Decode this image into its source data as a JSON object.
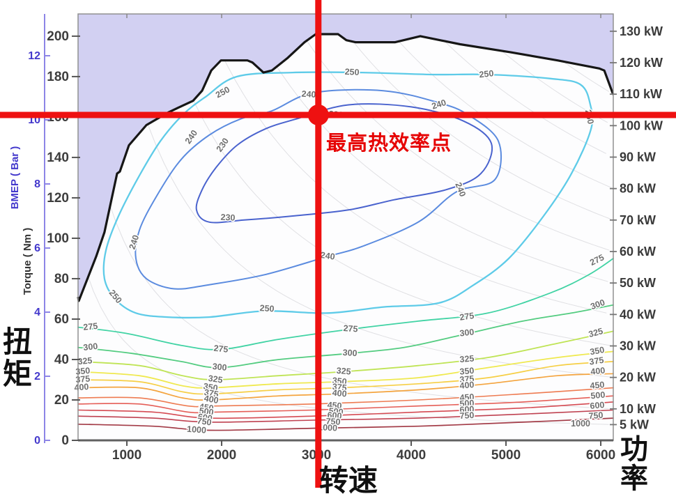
{
  "annotations": {
    "max_eff": "最高热效率点",
    "torque_cn": "扭矩",
    "speed_cn": "转速",
    "power_cn": "功率"
  },
  "chart_data": {
    "type": "contour",
    "title": "",
    "z_meaning": "BSFC contour levels (g/kWh)",
    "x": {
      "unit": "rpm",
      "ticks": [
        1000,
        2000,
        3000,
        4000,
        5000,
        6000
      ],
      "range": [
        485,
        6132
      ]
    },
    "y": {
      "label": "Torque ( Nm )",
      "unit": "Nm",
      "ticks": [
        0,
        20,
        40,
        60,
        80,
        100,
        120,
        140,
        160,
        180,
        200
      ],
      "range": [
        0,
        211
      ]
    },
    "y2": {
      "label": "BMEP ( Bar )",
      "unit": "Bar",
      "ticks": [
        0,
        2,
        4,
        6,
        8,
        10,
        12
      ],
      "range": [
        0,
        13.3
      ]
    },
    "power": {
      "unit": "kW",
      "levels": [
        130,
        120,
        110,
        100,
        90,
        80,
        70,
        60,
        50,
        40,
        30,
        20,
        10,
        5
      ]
    },
    "full_load_curve": [
      [
        485,
        71
      ],
      [
        492,
        69
      ],
      [
        676,
        91
      ],
      [
        764,
        103
      ],
      [
        823,
        116
      ],
      [
        897,
        132
      ],
      [
        926,
        133
      ],
      [
        1022,
        146
      ],
      [
        1206,
        156
      ],
      [
        1426,
        162
      ],
      [
        1515,
        164
      ],
      [
        1698,
        168
      ],
      [
        1794,
        173
      ],
      [
        1890,
        183
      ],
      [
        1993,
        188
      ],
      [
        2272,
        188
      ],
      [
        2324,
        187
      ],
      [
        2441,
        182
      ],
      [
        2529,
        183
      ],
      [
        2691,
        189
      ],
      [
        2875,
        197
      ],
      [
        2993,
        201
      ],
      [
        3228,
        201
      ],
      [
        3316,
        198
      ],
      [
        3412,
        197
      ],
      [
        3831,
        197
      ],
      [
        4096,
        200
      ],
      [
        4515,
        196
      ],
      [
        5052,
        192
      ],
      [
        5544,
        188
      ],
      [
        5985,
        184
      ],
      [
        6037,
        183
      ],
      [
        6132,
        171
      ]
    ],
    "contours": [
      {
        "level": 230,
        "color": "#4a63ce",
        "width": 2,
        "closed": true,
        "points": [
          [
            2786,
            159
          ],
          [
            3338,
            166
          ],
          [
            4000,
            165
          ],
          [
            4551,
            158
          ],
          [
            4845,
            147
          ],
          [
            4735,
            132
          ],
          [
            4367,
            124
          ],
          [
            3816,
            119
          ],
          [
            3338,
            114
          ],
          [
            2750,
            111
          ],
          [
            2235,
            109
          ],
          [
            1867,
            108
          ],
          [
            1735,
            114
          ],
          [
            1794,
            124
          ],
          [
            1941,
            135
          ],
          [
            2162,
            146
          ],
          [
            2456,
            154
          ]
        ],
        "labels": [
          [
            2014,
            146,
            -55
          ],
          [
            2066,
            110,
            3
          ],
          [
            3206,
            161,
            5
          ]
        ]
      },
      {
        "level": 240,
        "color": "#5b8bdf",
        "width": 2,
        "closed": true,
        "points": [
          [
            2529,
            163
          ],
          [
            2970,
            172
          ],
          [
            3706,
            173
          ],
          [
            4294,
            167
          ],
          [
            4603,
            161
          ],
          [
            4920,
            148
          ],
          [
            4883,
            129
          ],
          [
            4478,
            123
          ],
          [
            4074,
            108
          ],
          [
            3485,
            96
          ],
          [
            3118,
            91
          ],
          [
            2456,
            82
          ],
          [
            1867,
            77
          ],
          [
            1500,
            75
          ],
          [
            1206,
            80
          ],
          [
            1095,
            90
          ],
          [
            1132,
            104
          ],
          [
            1316,
            121
          ],
          [
            1573,
            139
          ],
          [
            1867,
            151
          ],
          [
            2198,
            159
          ]
        ],
        "labels": [
          [
            1684,
            150,
            -55
          ],
          [
            2919,
            171,
            4
          ],
          [
            4294,
            166,
            -18
          ],
          [
            4515,
            124,
            68
          ],
          [
            3118,
            91,
            8
          ],
          [
            1081,
            98,
            -72
          ]
        ]
      },
      {
        "level": 250,
        "color": "#5ecbe8",
        "width": 2.3,
        "closed": true,
        "points": [
          [
            2162,
            180
          ],
          [
            2750,
            182
          ],
          [
            3485,
            182
          ],
          [
            4221,
            181
          ],
          [
            4809,
            181
          ],
          [
            5471,
            179
          ],
          [
            5787,
            176
          ],
          [
            5890,
            166
          ],
          [
            5897,
            154
          ],
          [
            5691,
            132
          ],
          [
            5397,
            111
          ],
          [
            5029,
            90
          ],
          [
            4662,
            77
          ],
          [
            4294,
            68
          ],
          [
            3706,
            66
          ],
          [
            3118,
            63
          ],
          [
            2456,
            64
          ],
          [
            1867,
            61
          ],
          [
            1426,
            61
          ],
          [
            1095,
            63
          ],
          [
            875,
            70
          ],
          [
            764,
            80
          ],
          [
            779,
            94
          ],
          [
            912,
            111
          ],
          [
            1132,
            131
          ],
          [
            1353,
            148
          ],
          [
            1588,
            161
          ],
          [
            1831,
            170
          ]
        ],
        "labels": [
          [
            875,
            71,
            50
          ],
          [
            2014,
            172,
            -28
          ],
          [
            3375,
            182,
            3
          ],
          [
            4794,
            181,
            -6
          ],
          [
            5875,
            160,
            78
          ],
          [
            2478,
            65,
            4
          ]
        ]
      },
      {
        "level": 275,
        "color": "#41d3a4",
        "width": 1.8,
        "closed": false,
        "points": [
          [
            485,
            56
          ],
          [
            985,
            53
          ],
          [
            1573,
            47
          ],
          [
            1992,
            45
          ],
          [
            2603,
            50
          ],
          [
            3360,
            55
          ],
          [
            4074,
            59
          ],
          [
            4809,
            63
          ],
          [
            5471,
            73
          ],
          [
            5875,
            82
          ],
          [
            6132,
            90
          ]
        ],
        "labels": [
          [
            617,
            56,
            -6
          ],
          [
            1992,
            45,
            6
          ],
          [
            3360,
            55,
            4
          ],
          [
            4588,
            61,
            -8
          ],
          [
            5963,
            89,
            -26
          ]
        ]
      },
      {
        "level": 300,
        "color": "#53cc80",
        "width": 1.8,
        "closed": false,
        "points": [
          [
            485,
            46
          ],
          [
            1059,
            43
          ],
          [
            1573,
            39
          ],
          [
            1978,
            36
          ],
          [
            2603,
            40
          ],
          [
            3338,
            43
          ],
          [
            3927,
            46
          ],
          [
            4515,
            52
          ],
          [
            5176,
            59
          ],
          [
            5691,
            63
          ],
          [
            6132,
            67
          ]
        ],
        "labels": [
          [
            617,
            46,
            -6
          ],
          [
            1978,
            36,
            6
          ],
          [
            3353,
            43,
            4
          ],
          [
            4588,
            53,
            -6
          ],
          [
            5970,
            67,
            -20
          ]
        ]
      },
      {
        "level": 325,
        "color": "#bfe455",
        "width": 1.8,
        "closed": false,
        "points": [
          [
            485,
            39
          ],
          [
            1132,
            37
          ],
          [
            1588,
            32
          ],
          [
            1934,
            30
          ],
          [
            2603,
            32
          ],
          [
            3287,
            34
          ],
          [
            4074,
            37
          ],
          [
            4809,
            41
          ],
          [
            5544,
            48
          ],
          [
            6132,
            54
          ]
        ],
        "labels": [
          [
            559,
            39,
            -5
          ],
          [
            1934,
            30,
            8
          ],
          [
            3287,
            34,
            5
          ],
          [
            4588,
            40,
            -5
          ],
          [
            5949,
            53,
            -15
          ]
        ]
      },
      {
        "level": 350,
        "color": "#efe94f",
        "width": 1.8,
        "closed": false,
        "points": [
          [
            485,
            34
          ],
          [
            1132,
            32
          ],
          [
            1588,
            27
          ],
          [
            1882,
            26
          ],
          [
            2603,
            28
          ],
          [
            3243,
            29
          ],
          [
            4074,
            31
          ],
          [
            4809,
            36
          ],
          [
            5544,
            41
          ],
          [
            6132,
            44
          ]
        ],
        "labels": [
          [
            536,
            34,
            -5
          ],
          [
            1882,
            26,
            10
          ],
          [
            3243,
            29,
            6
          ],
          [
            4588,
            34,
            -5
          ],
          [
            5963,
            44,
            -10
          ]
        ]
      },
      {
        "level": 375,
        "color": "#f6cf45",
        "width": 1.7,
        "closed": false,
        "points": [
          [
            485,
            30
          ],
          [
            1132,
            29
          ],
          [
            1588,
            24
          ],
          [
            1890,
            23
          ],
          [
            2603,
            25
          ],
          [
            3243,
            26
          ],
          [
            4074,
            28
          ],
          [
            4809,
            31
          ],
          [
            5544,
            37
          ],
          [
            6132,
            39
          ]
        ],
        "labels": [
          [
            536,
            30,
            -5
          ],
          [
            1890,
            23,
            10
          ],
          [
            3243,
            26,
            6
          ],
          [
            4588,
            30,
            -5
          ],
          [
            5956,
            39,
            -8
          ]
        ]
      },
      {
        "level": 400,
        "color": "#f4a43e",
        "width": 1.7,
        "closed": false,
        "points": [
          [
            485,
            26
          ],
          [
            1132,
            26
          ],
          [
            1588,
            21
          ],
          [
            1890,
            20
          ],
          [
            2603,
            22
          ],
          [
            3243,
            23
          ],
          [
            4074,
            25
          ],
          [
            4809,
            28
          ],
          [
            5544,
            32
          ],
          [
            6132,
            33
          ]
        ],
        "labels": [
          [
            522,
            26,
            -5
          ],
          [
            1890,
            20,
            10
          ],
          [
            3243,
            23,
            6
          ],
          [
            4588,
            27,
            -5
          ],
          [
            5970,
            34,
            -6
          ]
        ]
      },
      {
        "level": 450,
        "color": "#ee7b51",
        "width": 1.6,
        "closed": false,
        "points": [
          [
            485,
            21
          ],
          [
            1132,
            21
          ],
          [
            1647,
            17
          ],
          [
            1941,
            17
          ],
          [
            2970,
            18
          ],
          [
            4074,
            20
          ],
          [
            5176,
            23
          ],
          [
            6132,
            26
          ]
        ],
        "labels": [
          [
            1838,
            16,
            8
          ],
          [
            3191,
            17,
            5
          ],
          [
            4588,
            21,
            -4
          ],
          [
            5963,
            27,
            -5
          ]
        ]
      },
      {
        "level": 500,
        "color": "#e55e57",
        "width": 1.6,
        "closed": false,
        "points": [
          [
            485,
            18
          ],
          [
            1132,
            18
          ],
          [
            1647,
            14
          ],
          [
            1941,
            14
          ],
          [
            2970,
            15
          ],
          [
            4074,
            17
          ],
          [
            5176,
            19
          ],
          [
            6132,
            22
          ]
        ],
        "labels": [
          [
            1838,
            14,
            8
          ],
          [
            3206,
            14,
            5
          ],
          [
            4588,
            18,
            -4
          ],
          [
            5970,
            22,
            -5
          ]
        ]
      },
      {
        "level": 600,
        "color": "#d54a52",
        "width": 1.6,
        "closed": false,
        "points": [
          [
            485,
            15
          ],
          [
            1279,
            14
          ],
          [
            1867,
            11
          ],
          [
            2970,
            12
          ],
          [
            4074,
            14
          ],
          [
            5176,
            16
          ],
          [
            6132,
            19
          ]
        ],
        "labels": [
          [
            1824,
            11,
            8
          ],
          [
            3191,
            12,
            4
          ],
          [
            4588,
            15,
            -3
          ],
          [
            5963,
            17,
            -5
          ]
        ]
      },
      {
        "level": 750,
        "color": "#bf4150",
        "width": 1.6,
        "closed": false,
        "points": [
          [
            485,
            12
          ],
          [
            1279,
            11
          ],
          [
            1867,
            9
          ],
          [
            2970,
            10
          ],
          [
            4074,
            11
          ],
          [
            5176,
            13
          ],
          [
            6132,
            15
          ]
        ],
        "labels": [
          [
            1816,
            9,
            8
          ],
          [
            3176,
            9,
            4
          ],
          [
            4588,
            12,
            -3
          ],
          [
            5949,
            12,
            -4
          ]
        ]
      },
      {
        "level": 1000,
        "color": "#a23a46",
        "width": 1.7,
        "closed": false,
        "points": [
          [
            485,
            8
          ],
          [
            1279,
            7
          ],
          [
            1867,
            5
          ],
          [
            2970,
            6
          ],
          [
            4074,
            7
          ],
          [
            5176,
            9
          ],
          [
            6132,
            11
          ]
        ],
        "labels": [
          [
            1735,
            5,
            4
          ],
          [
            3118,
            6,
            3
          ],
          [
            5787,
            8,
            0
          ]
        ]
      }
    ],
    "marker": {
      "rpm": 3020,
      "torque": 161,
      "label": "最高热效率点"
    },
    "colors": {
      "plot_bg": "#d2d0f2",
      "region": "#fdfdfe",
      "power_line": "#cdcdd2",
      "border": "#909090",
      "axis_dark": "#606060",
      "black_curve": "#161616",
      "tick_text": "#3d3d3d",
      "bmep_axis": "#8d85e6",
      "bmep_text": "#4338cc",
      "contour_label": "#6f6f6f",
      "crosshair": "#ee1111",
      "marker_text": "#e60404"
    }
  }
}
